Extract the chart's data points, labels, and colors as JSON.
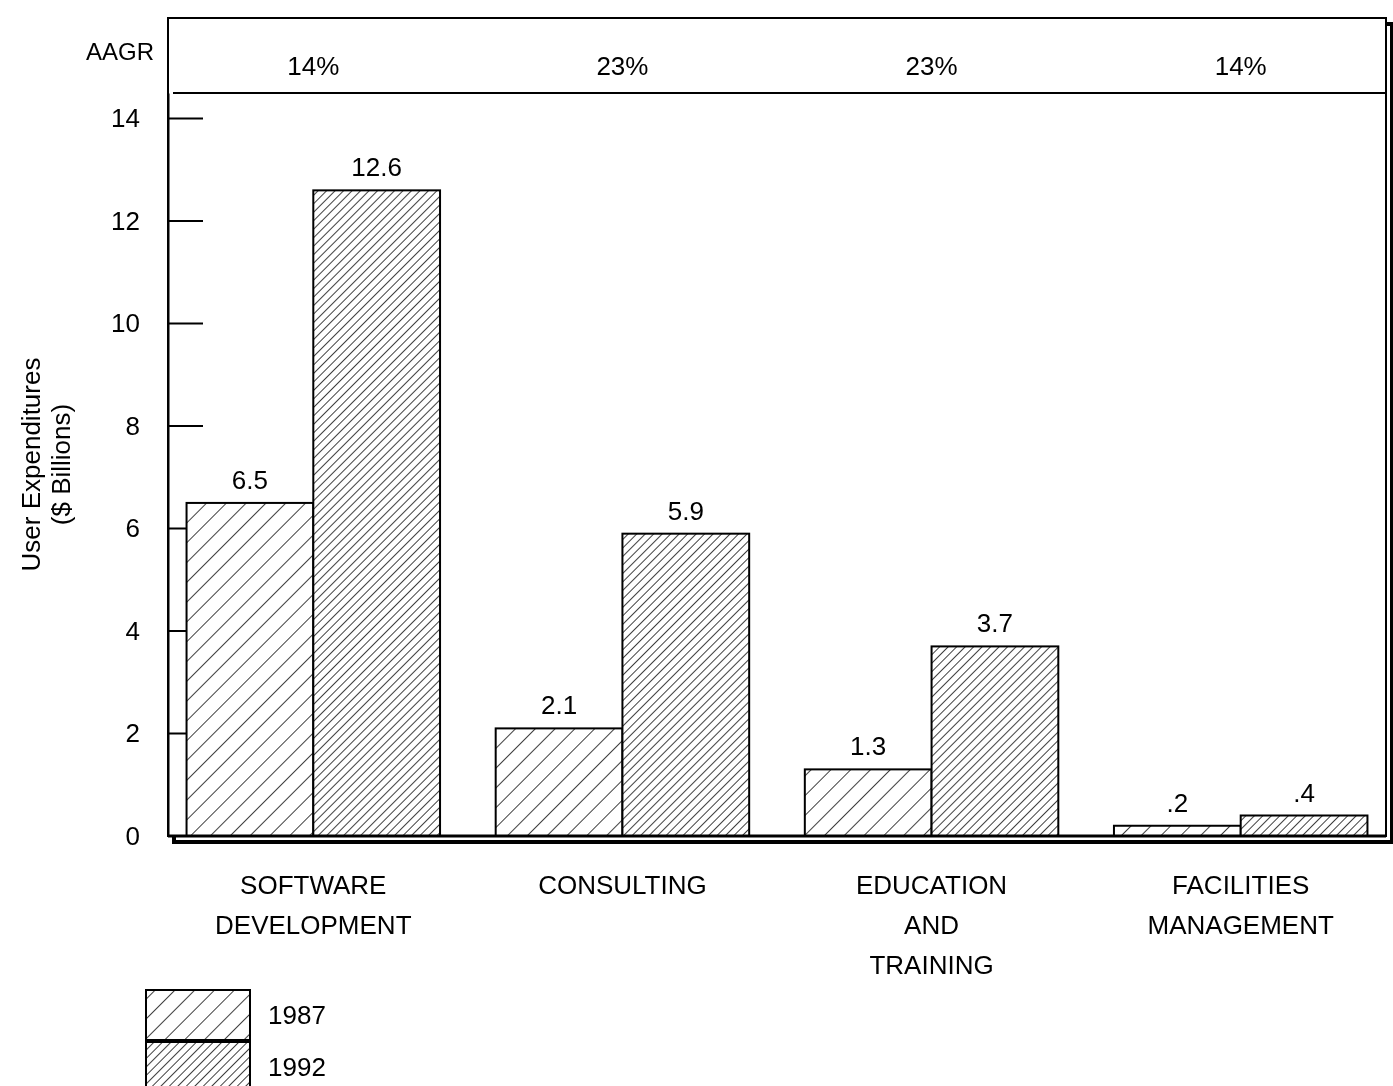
{
  "chart_data": {
    "type": "bar",
    "ylabel": "User Expenditures\n($ Billions)",
    "categories": [
      "SOFTWARE DEVELOPMENT",
      "CONSULTING",
      "EDUCATION AND TRAINING",
      "FACILITIES MANAGEMENT"
    ],
    "series": [
      {
        "name": "1987",
        "color": "#000000",
        "values": [
          6.5,
          2.1,
          1.3,
          0.2
        ],
        "value_labels": [
          "6.5",
          "2.1",
          "1.3",
          ".2"
        ]
      },
      {
        "name": "1992",
        "color": "#000000",
        "values": [
          12.6,
          5.9,
          3.7,
          0.4
        ],
        "value_labels": [
          "12.6",
          "5.9",
          "3.7",
          ".4"
        ]
      }
    ],
    "ylim": [
      0,
      14.5
    ],
    "yticks": [
      0,
      2,
      4,
      6,
      8,
      10,
      12,
      14
    ],
    "grid": false,
    "legend": "bottom left",
    "annotations": [
      "AAGR",
      "14%",
      "23%",
      "23%",
      "14%"
    ]
  }
}
